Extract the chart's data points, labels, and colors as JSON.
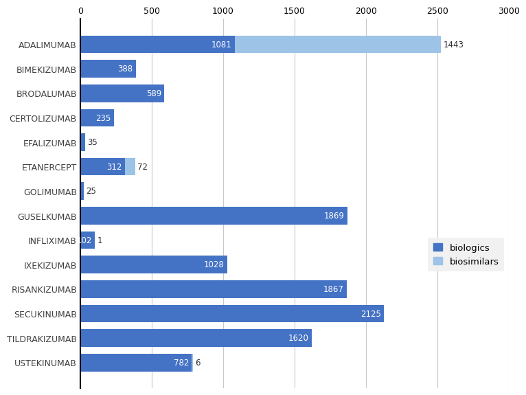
{
  "categories": [
    "ADALIMUMAB",
    "BIMEKIZUMAB",
    "BRODALUMAB",
    "CERTOLIZUMAB",
    "EFALIZUMAB",
    "ETANERCEPT",
    "GOLIMUMAB",
    "GUSELKUMAB",
    "INFLIXIMAB",
    "IXEKIZUMAB",
    "RISANKIZUMAB",
    "SECUKINUMAB",
    "TILDRAKIZUMAB",
    "USTEKINUMAB"
  ],
  "biologics": [
    1081,
    388,
    589,
    235,
    35,
    312,
    25,
    1869,
    102,
    1028,
    1867,
    2125,
    1620,
    782
  ],
  "biosimilars": [
    1443,
    0,
    0,
    0,
    0,
    72,
    0,
    0,
    1,
    0,
    0,
    0,
    0,
    6
  ],
  "biologics_color": "#4472C4",
  "biosimilars_color": "#9DC3E6",
  "background_color": "#FFFFFF",
  "xlim": [
    0,
    3000
  ],
  "xticks": [
    0,
    500,
    1000,
    1500,
    2000,
    2500,
    3000
  ],
  "figsize": [
    7.55,
    5.64
  ],
  "dpi": 100,
  "bar_height": 0.72,
  "label_fontsize": 8.5,
  "tick_fontsize": 9,
  "legend_fontsize": 9.5,
  "label_color": "#2F2F2F",
  "white_text": "#FFFFFF"
}
